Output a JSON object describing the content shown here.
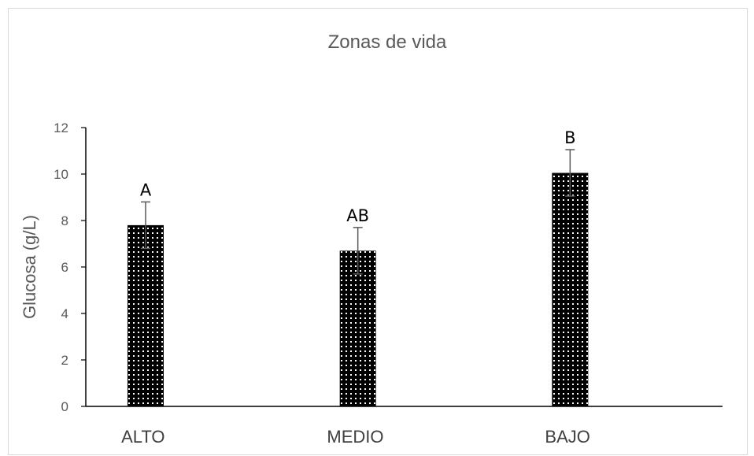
{
  "chart_data": {
    "type": "bar",
    "title": "Zonas de vida",
    "xlabel": "",
    "ylabel": "Glucosa (g/L)",
    "categories": [
      "ALTO",
      "MEDIO",
      "BAJO"
    ],
    "values": [
      7.8,
      6.7,
      10.05
    ],
    "error": [
      1.0,
      1.0,
      1.0
    ],
    "significance_labels": [
      "A",
      "AB",
      "B"
    ],
    "ylim": [
      0,
      12
    ],
    "yticks": [
      0,
      2,
      4,
      6,
      8,
      10,
      12
    ],
    "grid": false,
    "legend": "none",
    "bar_color": "#000000",
    "bar_pattern": "dotted"
  }
}
